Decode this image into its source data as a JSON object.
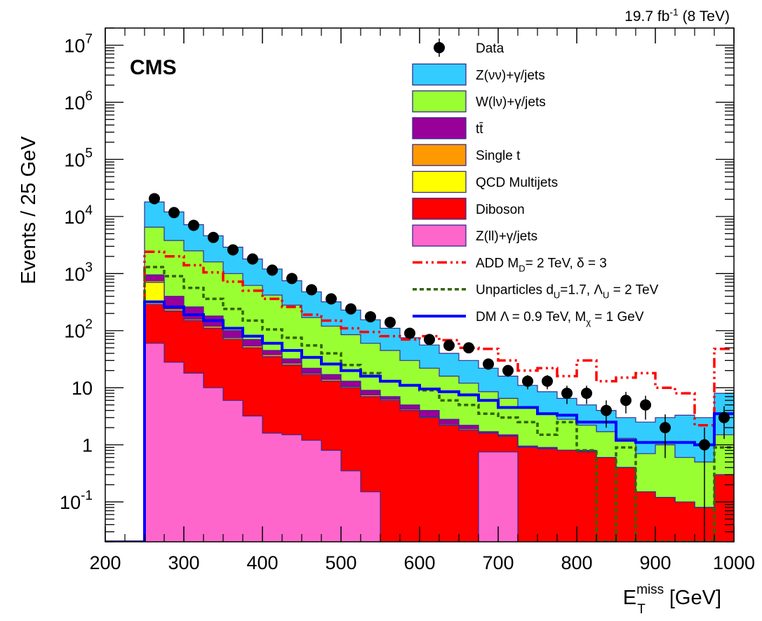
{
  "chart_data": {
    "type": "stacked-histogram",
    "title": "",
    "experiment": "CMS",
    "luminosity": {
      "prefix": "19.7 fb",
      "exp": "-1",
      "suffix": " (8 TeV)"
    },
    "xlabel": {
      "main": "E",
      "sup": "miss",
      "sub": "T",
      "unit": " [GeV]"
    },
    "ylabel": "Events / 25 GeV",
    "xlim": [
      200,
      1000
    ],
    "ylim": [
      0.02,
      20000000
    ],
    "yscale": "log",
    "xticks": [
      200,
      300,
      400,
      500,
      600,
      700,
      800,
      900,
      1000
    ],
    "yticks": [
      {
        "value": 0.1,
        "base": "10",
        "exp": "-1"
      },
      {
        "value": 1,
        "base": "1",
        "exp": ""
      },
      {
        "value": 10,
        "base": "10",
        "exp": ""
      },
      {
        "value": 100,
        "base": "10",
        "exp": "2"
      },
      {
        "value": 1000,
        "base": "10",
        "exp": "3"
      },
      {
        "value": 10000,
        "base": "10",
        "exp": "4"
      },
      {
        "value": 100000,
        "base": "10",
        "exp": "5"
      },
      {
        "value": 1000000,
        "base": "10",
        "exp": "6"
      },
      {
        "value": 10000000,
        "base": "10",
        "exp": "7"
      }
    ],
    "bin_edges": [
      200,
      225,
      250,
      275,
      300,
      325,
      350,
      375,
      400,
      425,
      450,
      475,
      500,
      525,
      550,
      575,
      600,
      625,
      650,
      675,
      700,
      725,
      750,
      775,
      800,
      825,
      850,
      875,
      900,
      925,
      950,
      975,
      1000
    ],
    "stack_tops": [
      {
        "name": "Z(ll)+γ/jets",
        "color": "#ff66cc",
        "values": [
          0,
          0,
          60,
          28,
          18,
          10,
          6,
          3.2,
          1.6,
          1.5,
          1.2,
          0.8,
          0.35,
          0.15,
          0,
          0,
          0,
          0,
          0,
          0.75,
          0.75,
          0,
          0,
          0,
          0,
          0,
          0,
          0,
          0,
          0,
          0,
          0
        ]
      },
      {
        "name": "Diboson",
        "color": "#ff0000",
        "values": [
          0,
          0,
          290,
          220,
          150,
          110,
          70,
          50,
          35,
          25,
          17,
          13,
          10,
          7,
          6,
          4,
          3,
          2.2,
          1.8,
          1.6,
          1.4,
          0.9,
          0.85,
          0.8,
          0.75,
          0.6,
          0.4,
          0.15,
          0.12,
          0.1,
          0.08,
          0.3
        ]
      },
      {
        "name": "QCD Multijets",
        "color": "#ffff00",
        "values": [
          0,
          0,
          700,
          220,
          150,
          110,
          70,
          50,
          35,
          25,
          17,
          13,
          10,
          7,
          6,
          4,
          3,
          2.2,
          1.8,
          1.6,
          1.4,
          0.9,
          0.85,
          0.8,
          0.75,
          0.6,
          0.4,
          0.15,
          0.12,
          0.1,
          0.08,
          0.3
        ]
      },
      {
        "name": "Single t",
        "color": "#ff9900",
        "values": [
          0,
          0,
          750,
          240,
          160,
          120,
          75,
          54,
          38,
          27,
          18,
          14,
          10.5,
          7.5,
          6.3,
          4.2,
          3.1,
          2.3,
          1.9,
          1.6,
          1.4,
          0.9,
          0.85,
          0.8,
          0.75,
          0.6,
          0.4,
          0.15,
          0.12,
          0.1,
          0.08,
          0.3
        ]
      },
      {
        "name": "tt̄",
        "color": "#990099",
        "values": [
          0,
          0,
          950,
          400,
          260,
          180,
          100,
          70,
          45,
          32,
          22,
          17,
          13,
          9,
          7,
          5,
          4,
          2.8,
          2.2,
          1.7,
          1.5,
          0.95,
          0.9,
          0.8,
          0.8,
          0.6,
          0.4,
          0.15,
          0.12,
          0.1,
          0.08,
          0.3
        ]
      },
      {
        "name": "W(lν)+γ/jets",
        "color": "#99ff33",
        "values": [
          0,
          0,
          6500,
          3800,
          2500,
          1600,
          1000,
          620,
          420,
          280,
          170,
          120,
          85,
          60,
          45,
          30,
          22,
          16,
          12,
          8.5,
          6.5,
          4.5,
          3.5,
          2.8,
          2.2,
          1.7,
          1.3,
          0.7,
          1.0,
          0.6,
          0.5,
          1.5
        ]
      },
      {
        "name": "Z(νν)+γ/jets",
        "color": "#33ccff",
        "values": [
          0,
          0,
          18000,
          12000,
          7200,
          4600,
          2900,
          1800,
          1200,
          750,
          480,
          320,
          230,
          155,
          110,
          75,
          56,
          40,
          30,
          22,
          16,
          11,
          8.5,
          6.5,
          5,
          4,
          3,
          2.5,
          3,
          3.3,
          3,
          8
        ]
      }
    ],
    "data_points": {
      "name": "Data",
      "x": [
        262.5,
        287.5,
        312.5,
        337.5,
        362.5,
        387.5,
        412.5,
        437.5,
        462.5,
        487.5,
        512.5,
        537.5,
        562.5,
        587.5,
        612.5,
        637.5,
        662.5,
        687.5,
        712.5,
        737.5,
        762.5,
        787.5,
        812.5,
        837.5,
        862.5,
        887.5,
        912.5,
        937.5,
        962.5,
        987.5
      ],
      "y": [
        20500,
        11700,
        7000,
        4300,
        2600,
        1800,
        1150,
        820,
        520,
        360,
        240,
        175,
        140,
        90,
        70,
        55,
        50,
        26,
        20,
        13,
        13,
        8,
        8,
        4,
        6,
        5,
        2,
        0,
        1,
        3
      ]
    },
    "signals": [
      {
        "name": "ADD",
        "color": "#ff0000",
        "style": "dash-dot",
        "values": [
          0,
          0,
          2400,
          2000,
          1400,
          1050,
          720,
          500,
          360,
          260,
          190,
          150,
          110,
          95,
          80,
          70,
          80,
          68,
          50,
          48,
          30,
          20,
          22,
          16,
          30,
          13,
          15,
          18,
          10,
          8,
          2.2,
          48
        ]
      },
      {
        "name": "Unparticles",
        "color": "#336600",
        "style": "dotted",
        "values": [
          0,
          0,
          1300,
          900,
          560,
          360,
          240,
          150,
          105,
          75,
          55,
          40,
          25,
          18,
          13,
          11,
          9,
          6,
          5,
          3.5,
          3,
          2.5,
          1.5,
          2.5,
          0.8,
          0.02,
          0.9,
          0.02,
          0.02,
          0.02,
          0.02,
          0.9
        ]
      },
      {
        "name": "DM",
        "color": "#0000ff",
        "style": "solid",
        "values": [
          0,
          0,
          320,
          260,
          190,
          150,
          110,
          80,
          60,
          45,
          34,
          26,
          20,
          16,
          13,
          11,
          9.5,
          8.5,
          7.5,
          6,
          4.5,
          4.5,
          3.5,
          3.3,
          2.5,
          2.5,
          1.2,
          1.1,
          1.1,
          1.1,
          1.0,
          3.5
        ]
      }
    ],
    "legend": [
      {
        "label": "Data",
        "kind": "point"
      },
      {
        "label": "Z(νν)+γ/jets",
        "kind": "box",
        "color": "#33ccff"
      },
      {
        "label": "W(lν)+γ/jets",
        "kind": "box",
        "color": "#99ff33"
      },
      {
        "label": "tt̄",
        "kind": "box",
        "color": "#990099"
      },
      {
        "label": "Single t",
        "kind": "box",
        "color": "#ff9900"
      },
      {
        "label": "QCD Multijets",
        "kind": "box",
        "color": "#ffff00"
      },
      {
        "label": "Diboson",
        "kind": "box",
        "color": "#ff0000"
      },
      {
        "label": "Z(ll)+γ/jets",
        "kind": "box",
        "color": "#ff66cc"
      },
      {
        "label": "ADD M",
        "sub": "D",
        "rest": "= 2 TeV, δ = 3",
        "kind": "line",
        "color": "#ff0000",
        "dash": "14 5 3 5 3 5"
      },
      {
        "label": "Unparticles d",
        "sub": "U",
        "rest": "=1.7, Λ",
        "sub2": "U",
        "rest2": " = 2 TeV",
        "kind": "line",
        "color": "#336600",
        "dash": "6 4"
      },
      {
        "label": "DM Λ = 0.9 TeV, M",
        "sub": "χ",
        "rest": " = 1 GeV",
        "kind": "line",
        "color": "#0000ff",
        "dash": ""
      }
    ]
  }
}
